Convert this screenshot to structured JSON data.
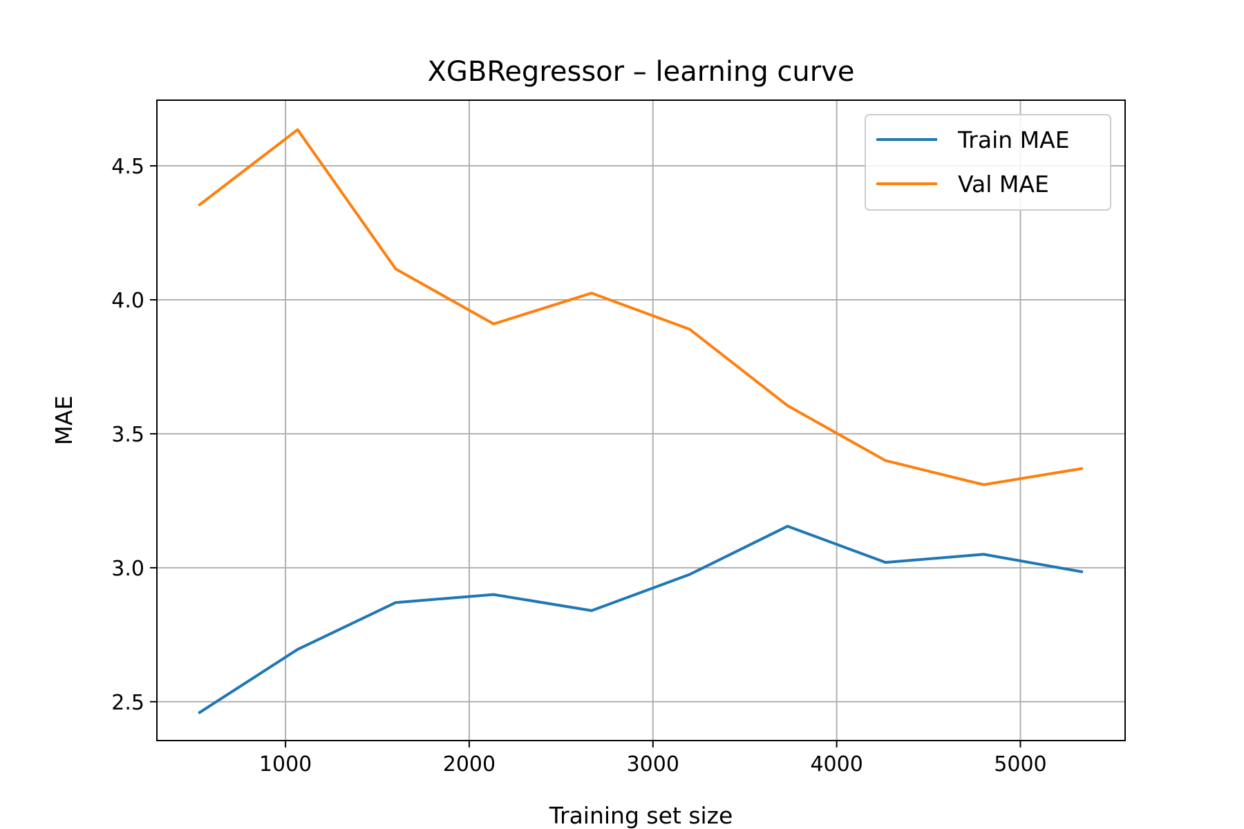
{
  "chart_data": {
    "type": "line",
    "title": "XGBRegressor – learning curve",
    "xlabel": "Training set size",
    "ylabel": "MAE",
    "xlim": [
      300,
      5570
    ],
    "ylim": [
      2.355,
      4.745
    ],
    "xticks": [
      1000,
      2000,
      3000,
      4000,
      5000
    ],
    "yticks": [
      2.5,
      3.0,
      3.5,
      4.0,
      4.5
    ],
    "grid": true,
    "legend_position": "top-right",
    "x": [
      533,
      1066,
      1600,
      2133,
      2666,
      3200,
      3733,
      4266,
      4800,
      5333
    ],
    "series": [
      {
        "name": "Train MAE",
        "color": "#1f77b4",
        "values": [
          2.46,
          2.695,
          2.87,
          2.9,
          2.84,
          2.975,
          3.155,
          3.02,
          3.05,
          2.985
        ]
      },
      {
        "name": "Val MAE",
        "color": "#ff7f0e",
        "values": [
          4.355,
          4.635,
          4.115,
          3.91,
          4.025,
          3.89,
          3.605,
          3.4,
          3.31,
          3.37
        ]
      }
    ]
  }
}
